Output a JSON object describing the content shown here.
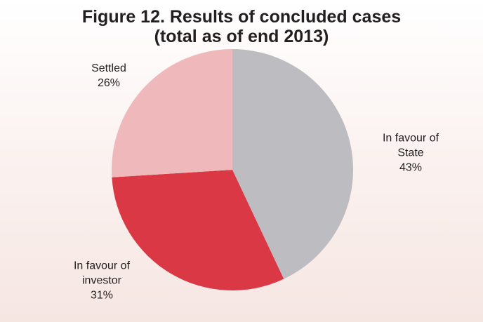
{
  "chart_data": {
    "type": "pie",
    "title": "Figure 12. Results of concluded cases",
    "subtitle": "(total as of end 2013)",
    "categories": [
      "In favour of State",
      "In favour of investor",
      "Settled"
    ],
    "values": [
      43,
      31,
      26
    ],
    "value_labels": [
      "43%",
      "31%",
      "26%"
    ],
    "colors": [
      "#bdbdc1",
      "#d93844",
      "#efb9bc"
    ]
  }
}
